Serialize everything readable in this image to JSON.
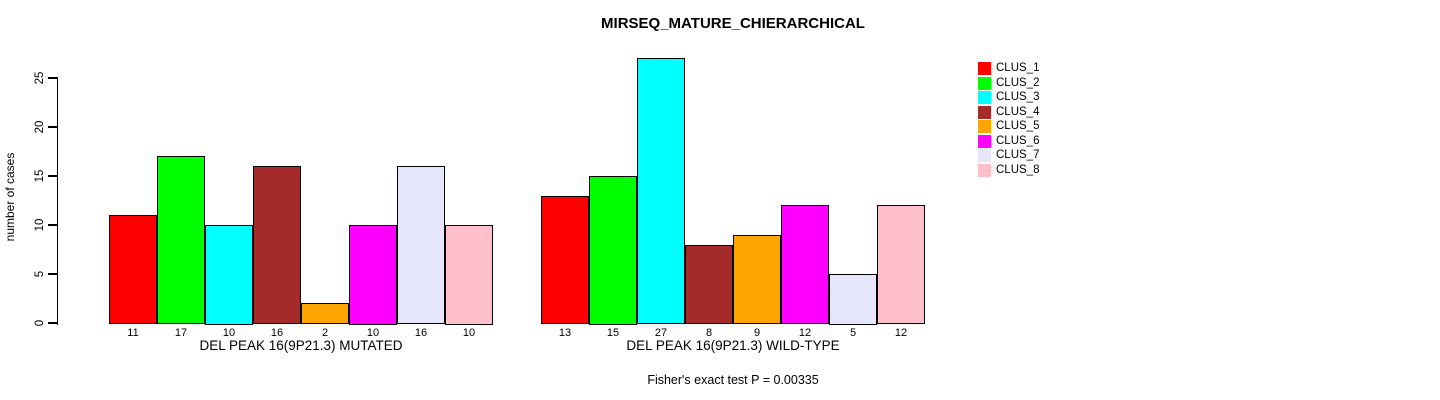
{
  "chart_data": {
    "type": "bar",
    "title": "MIRSEQ_MATURE_CHIERARCHICAL",
    "ylabel": "number of cases",
    "ylim": [
      0,
      27
    ],
    "yticks": [
      0,
      5,
      10,
      15,
      20,
      25
    ],
    "grid": false,
    "legend_position": "right",
    "legend": [
      {
        "name": "CLUS_1",
        "color": "#FF0000"
      },
      {
        "name": "CLUS_2",
        "color": "#00FF00"
      },
      {
        "name": "CLUS_3",
        "color": "#00FFFF"
      },
      {
        "name": "CLUS_4",
        "color": "#A52A2A"
      },
      {
        "name": "CLUS_5",
        "color": "#FFA500"
      },
      {
        "name": "CLUS_6",
        "color": "#FF00FF"
      },
      {
        "name": "CLUS_7",
        "color": "#E6E6FA"
      },
      {
        "name": "CLUS_8",
        "color": "#FFC0CB"
      }
    ],
    "groups": [
      {
        "label": "DEL PEAK 16(9P21.3) MUTATED",
        "values": [
          11,
          17,
          10,
          16,
          2,
          10,
          16,
          10
        ]
      },
      {
        "label": "DEL PEAK 16(9P21.3) WILD-TYPE",
        "values": [
          13,
          15,
          27,
          8,
          9,
          12,
          5,
          12
        ]
      }
    ],
    "annotation": "Fisher's exact test P = 0.00335",
    "bar_value_labels_shown": true
  }
}
